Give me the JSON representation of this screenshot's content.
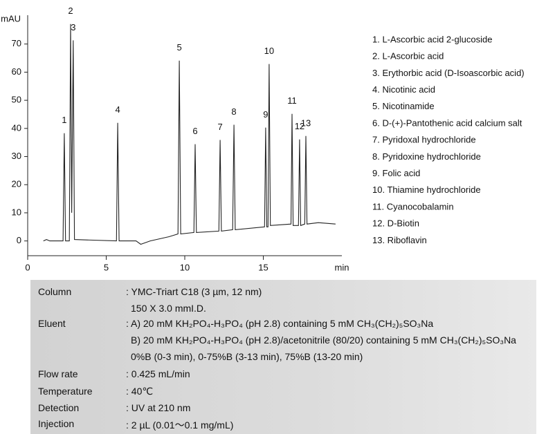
{
  "chart_data": {
    "type": "line",
    "y_label": "mAU",
    "x_label": "min",
    "color": "#222222",
    "xlim": [
      0,
      20
    ],
    "xticks": [
      0,
      5,
      10,
      15
    ],
    "ylim": [
      -5,
      80
    ],
    "yticks": [
      0,
      10,
      20,
      30,
      40,
      50,
      60,
      70
    ],
    "x": [
      1.0,
      1.2,
      1.4,
      2.25,
      2.33,
      2.41,
      2.65,
      2.73,
      2.8,
      2.9,
      2.98,
      5.65,
      5.73,
      5.82,
      6.9,
      7.2,
      7.8,
      9.0,
      9.57,
      9.65,
      9.74,
      10.58,
      10.66,
      10.74,
      12.17,
      12.25,
      12.33,
      13.05,
      13.13,
      13.21,
      15.08,
      15.15,
      15.22,
      15.3,
      15.37,
      15.45,
      16.76,
      16.83,
      16.9,
      17.24,
      17.31,
      17.38,
      17.64,
      17.71,
      17.78,
      18.5,
      19.6
    ],
    "values": [
      0,
      0.5,
      0,
      0,
      38.3,
      0,
      0,
      77.1,
      10,
      71.3,
      0.5,
      0,
      42,
      0,
      0,
      -1.2,
      0,
      1.5,
      2.5,
      64.1,
      2.5,
      3,
      34.4,
      3,
      3.5,
      35.9,
      3.5,
      4,
      41.3,
      4,
      5,
      40.3,
      5,
      5,
      62.9,
      5.5,
      6,
      45.2,
      5.5,
      5.5,
      36.1,
      5.5,
      6,
      37.3,
      6,
      6.5,
      6
    ],
    "annotations": [
      {
        "text": "1",
        "x": 2.33,
        "y": 38.3
      },
      {
        "text": "2",
        "x": 2.73,
        "y": 77.1
      },
      {
        "text": "3",
        "x": 2.9,
        "y": 71.3
      },
      {
        "text": "4",
        "x": 5.73,
        "y": 42
      },
      {
        "text": "5",
        "x": 9.65,
        "y": 64.1
      },
      {
        "text": "6",
        "x": 10.66,
        "y": 34.4
      },
      {
        "text": "7",
        "x": 12.25,
        "y": 35.9
      },
      {
        "text": "8",
        "x": 13.13,
        "y": 41.3
      },
      {
        "text": "9",
        "x": 15.15,
        "y": 40.3
      },
      {
        "text": "10",
        "x": 15.37,
        "y": 62.9
      },
      {
        "text": "11",
        "x": 16.83,
        "y": 45.2
      },
      {
        "text": "12",
        "x": 17.31,
        "y": 36.1
      },
      {
        "text": "13",
        "x": 17.71,
        "y": 37.3
      }
    ],
    "peak_names": [
      "1. L-Ascorbic acid 2-glucoside",
      "2. L-Ascorbic acid",
      "3. Erythorbic acid (D-Isoascorbic acid)",
      "4. Nicotinic acid",
      "5. Nicotinamide",
      "6. D-(+)-Pantothenic acid calcium salt",
      "7. Pyridoxal hydrochloride",
      "8. Pyridoxine hydrochloride",
      "9. Folic acid",
      "10. Thiamine hydrochloride",
      "11. Cyanocobalamin",
      "12. D-Biotin",
      "13. Riboflavin"
    ]
  },
  "conditions": [
    {
      "label": "Column",
      "lines": [
        ": YMC-Triart C18 (3 µm, 12 nm)",
        "150 X 3.0 mmI.D."
      ]
    },
    {
      "label": "Eluent",
      "lines": [
        ": A) 20 mM KH₂PO₄-H₃PO₄ (pH 2.8) containing 5 mM CH₃(CH₂)₅SO₃Na",
        "B) 20 mM KH₂PO₄-H₃PO₄ (pH 2.8)/acetonitrile (80/20) containing 5 mM CH₃(CH₂)₅SO₃Na",
        "0%B (0-3 min), 0-75%B (3-13 min), 75%B (13-20 min)"
      ]
    },
    {
      "label": "Flow rate",
      "lines": [
        ": 0.425 mL/min"
      ]
    },
    {
      "label": "Temperature",
      "lines": [
        ": 40℃"
      ]
    },
    {
      "label": "Detection",
      "lines": [
        ": UV at 210 nm"
      ]
    },
    {
      "label": "Injection",
      "lines": [
        ": 2 µL (0.01～0.1 mg/mL)"
      ]
    }
  ]
}
